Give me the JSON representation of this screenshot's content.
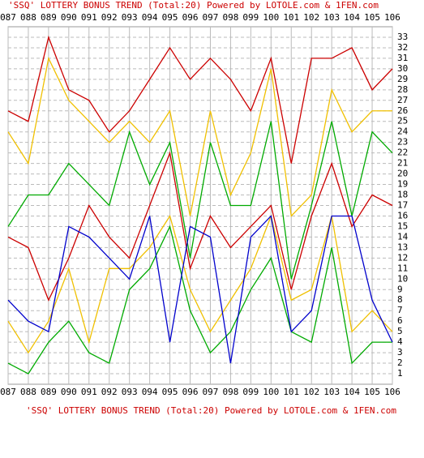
{
  "chart_data": {
    "type": "line",
    "title": "'SSQ' LOTTERY BONUS TREND (Total:20)  Powered by LOTOLE.com & 1FEN.com",
    "categories": [
      "087",
      "088",
      "089",
      "090",
      "091",
      "092",
      "093",
      "094",
      "095",
      "096",
      "097",
      "098",
      "099",
      "100",
      "101",
      "102",
      "103",
      "104",
      "105",
      "106"
    ],
    "series": [
      {
        "color": "#cc0000",
        "values": [
          26,
          25,
          33,
          28,
          27,
          24,
          26,
          29,
          32,
          29,
          31,
          29,
          26,
          31,
          21,
          31,
          31,
          32,
          28,
          30
        ]
      },
      {
        "color": "#cc0000",
        "values": [
          14,
          13,
          8,
          12,
          17,
          14,
          12,
          17,
          22,
          11,
          16,
          13,
          15,
          17,
          9,
          16,
          21,
          15,
          18,
          17
        ]
      },
      {
        "color": "#f0c000",
        "values": [
          24,
          21,
          31,
          27,
          25,
          23,
          25,
          23,
          26,
          16,
          26,
          18,
          22,
          30,
          16,
          18,
          28,
          24,
          26,
          26
        ]
      },
      {
        "color": "#f0c000",
        "values": [
          6,
          3,
          6,
          11,
          4,
          11,
          11,
          13,
          16,
          9,
          5,
          8,
          11,
          16,
          8,
          9,
          16,
          5,
          7,
          5
        ]
      },
      {
        "color": "#00aa00",
        "values": [
          15,
          18,
          18,
          21,
          19,
          17,
          24,
          19,
          23,
          12,
          23,
          17,
          17,
          25,
          10,
          17,
          25,
          16,
          24,
          22
        ]
      },
      {
        "color": "#00aa00",
        "values": [
          2,
          1,
          4,
          6,
          3,
          2,
          9,
          11,
          15,
          7,
          3,
          5,
          9,
          12,
          5,
          4,
          13,
          2,
          4,
          4
        ]
      },
      {
        "color": "#0000cc",
        "values": [
          8,
          6,
          5,
          15,
          14,
          12,
          10,
          16,
          4,
          15,
          14,
          2,
          14,
          16,
          5,
          7,
          16,
          16,
          8,
          4
        ]
      }
    ],
    "ylim": [
      0,
      34
    ],
    "yticks": [
      1,
      2,
      3,
      4,
      5,
      6,
      7,
      8,
      9,
      10,
      11,
      12,
      13,
      14,
      15,
      16,
      17,
      18,
      19,
      20,
      21,
      22,
      23,
      24,
      25,
      26,
      27,
      28,
      29,
      30,
      31,
      32,
      33
    ],
    "grid": true
  }
}
